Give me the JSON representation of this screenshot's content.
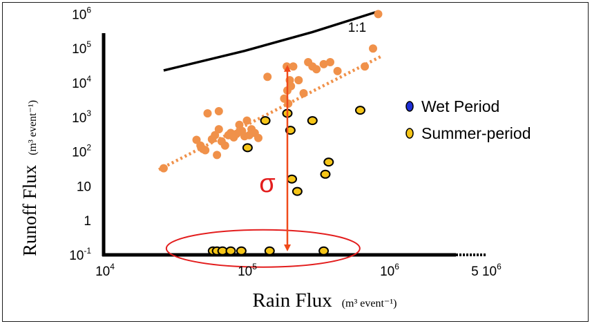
{
  "chart_data": {
    "type": "scatter",
    "title": "",
    "xlabel": {
      "main": "Rain Flux",
      "unit": "(m³ event⁻¹)"
    },
    "ylabel": {
      "main": "Runoff Flux",
      "unit": "(m³ event⁻¹)"
    },
    "x_scale": "log",
    "y_scale": "log",
    "xlim": [
      10000,
      5000000
    ],
    "ylim": [
      0.1,
      1000000
    ],
    "x_ticks": [
      {
        "value": 10000,
        "base": "10",
        "exp": "4",
        "coef": ""
      },
      {
        "value": 100000,
        "base": "10",
        "exp": "5",
        "coef": ""
      },
      {
        "value": 1000000,
        "base": "10",
        "exp": "6",
        "coef": ""
      },
      {
        "value": 5000000,
        "base": "10",
        "exp": "6",
        "coef": "5 "
      }
    ],
    "y_ticks": [
      {
        "value": 0.1,
        "base": "10",
        "exp": "-1"
      },
      {
        "value": 1,
        "base": "1",
        "exp": ""
      },
      {
        "value": 10,
        "base": "10",
        "exp": ""
      },
      {
        "value": 100,
        "base": "10",
        "exp": "2"
      },
      {
        "value": 1000,
        "base": "10",
        "exp": "3"
      },
      {
        "value": 10000,
        "base": "10",
        "exp": "4"
      },
      {
        "value": 100000,
        "base": "10",
        "exp": "5"
      },
      {
        "value": 1000000,
        "base": "10",
        "exp": "6"
      }
    ],
    "grid": false,
    "legend_position": "right",
    "legend": [
      {
        "label": "Wet Period",
        "color": "#1f2fd6"
      },
      {
        "label": "Summer-period",
        "color": "#f5c518"
      }
    ],
    "series": [
      {
        "name": "Wet Period",
        "color": "#f0914a",
        "marker": "circle",
        "points": [
          [
            27000,
            33
          ],
          [
            46000,
            220
          ],
          [
            49000,
            150
          ],
          [
            51000,
            120
          ],
          [
            53000,
            110
          ],
          [
            55000,
            1300
          ],
          [
            59000,
            230
          ],
          [
            62000,
            300
          ],
          [
            64000,
            80
          ],
          [
            66000,
            1500
          ],
          [
            66000,
            450
          ],
          [
            69000,
            200
          ],
          [
            73000,
            150
          ],
          [
            77000,
            300
          ],
          [
            80000,
            350
          ],
          [
            84000,
            260
          ],
          [
            88000,
            330
          ],
          [
            92000,
            600
          ],
          [
            96000,
            400
          ],
          [
            100000,
            280
          ],
          [
            104000,
            800
          ],
          [
            108000,
            300
          ],
          [
            112000,
            450
          ],
          [
            118000,
            350
          ],
          [
            125000,
            250
          ],
          [
            145000,
            15000
          ],
          [
            190000,
            3500
          ],
          [
            198000,
            30000
          ],
          [
            200000,
            6000
          ],
          [
            203000,
            2500
          ],
          [
            208000,
            12000
          ],
          [
            212000,
            8000
          ],
          [
            220000,
            30000
          ],
          [
            240000,
            12000
          ],
          [
            260000,
            5000
          ],
          [
            280000,
            40000
          ],
          [
            300000,
            30000
          ],
          [
            320000,
            25000
          ],
          [
            360000,
            35000
          ],
          [
            400000,
            40000
          ],
          [
            450000,
            22000
          ],
          [
            700000,
            30000
          ],
          [
            800000,
            100000
          ],
          [
            870000,
            1000000
          ]
        ]
      },
      {
        "name": "Summer-period",
        "color": "#f5c518",
        "marker": "circle-outlined",
        "points": [
          [
            60000,
            0.13
          ],
          [
            64000,
            0.13
          ],
          [
            70000,
            0.13
          ],
          [
            80000,
            0.13
          ],
          [
            95000,
            0.13
          ],
          [
            150000,
            0.13
          ],
          [
            360000,
            0.13
          ],
          [
            105000,
            130
          ],
          [
            140000,
            800
          ],
          [
            200000,
            1300
          ],
          [
            210000,
            420
          ],
          [
            300000,
            800
          ],
          [
            650000,
            1600
          ],
          [
            215000,
            16
          ],
          [
            235000,
            7
          ],
          [
            370000,
            22
          ],
          [
            390000,
            50
          ]
        ]
      }
    ],
    "lines": [
      {
        "label": "1:1",
        "style": "solid",
        "color": "#000000",
        "points": [
          [
            27000,
            23000
          ],
          [
            100000,
            85000
          ],
          [
            300000,
            300000
          ],
          [
            870000,
            1200000
          ]
        ]
      },
      {
        "label": "",
        "style": "dotted",
        "color": "#f0914a",
        "points": [
          [
            25000,
            30
          ],
          [
            920000,
            60000
          ]
        ]
      }
    ],
    "annotations": {
      "sigma_label": "σ",
      "sigma_arrow": {
        "x": 200000,
        "y_from": 0.12,
        "y_to": 35000,
        "color": "#f04a1a"
      },
      "ellipse": {
        "cx": 135000,
        "cy": 0.14,
        "color": "#e31d1d"
      }
    }
  }
}
